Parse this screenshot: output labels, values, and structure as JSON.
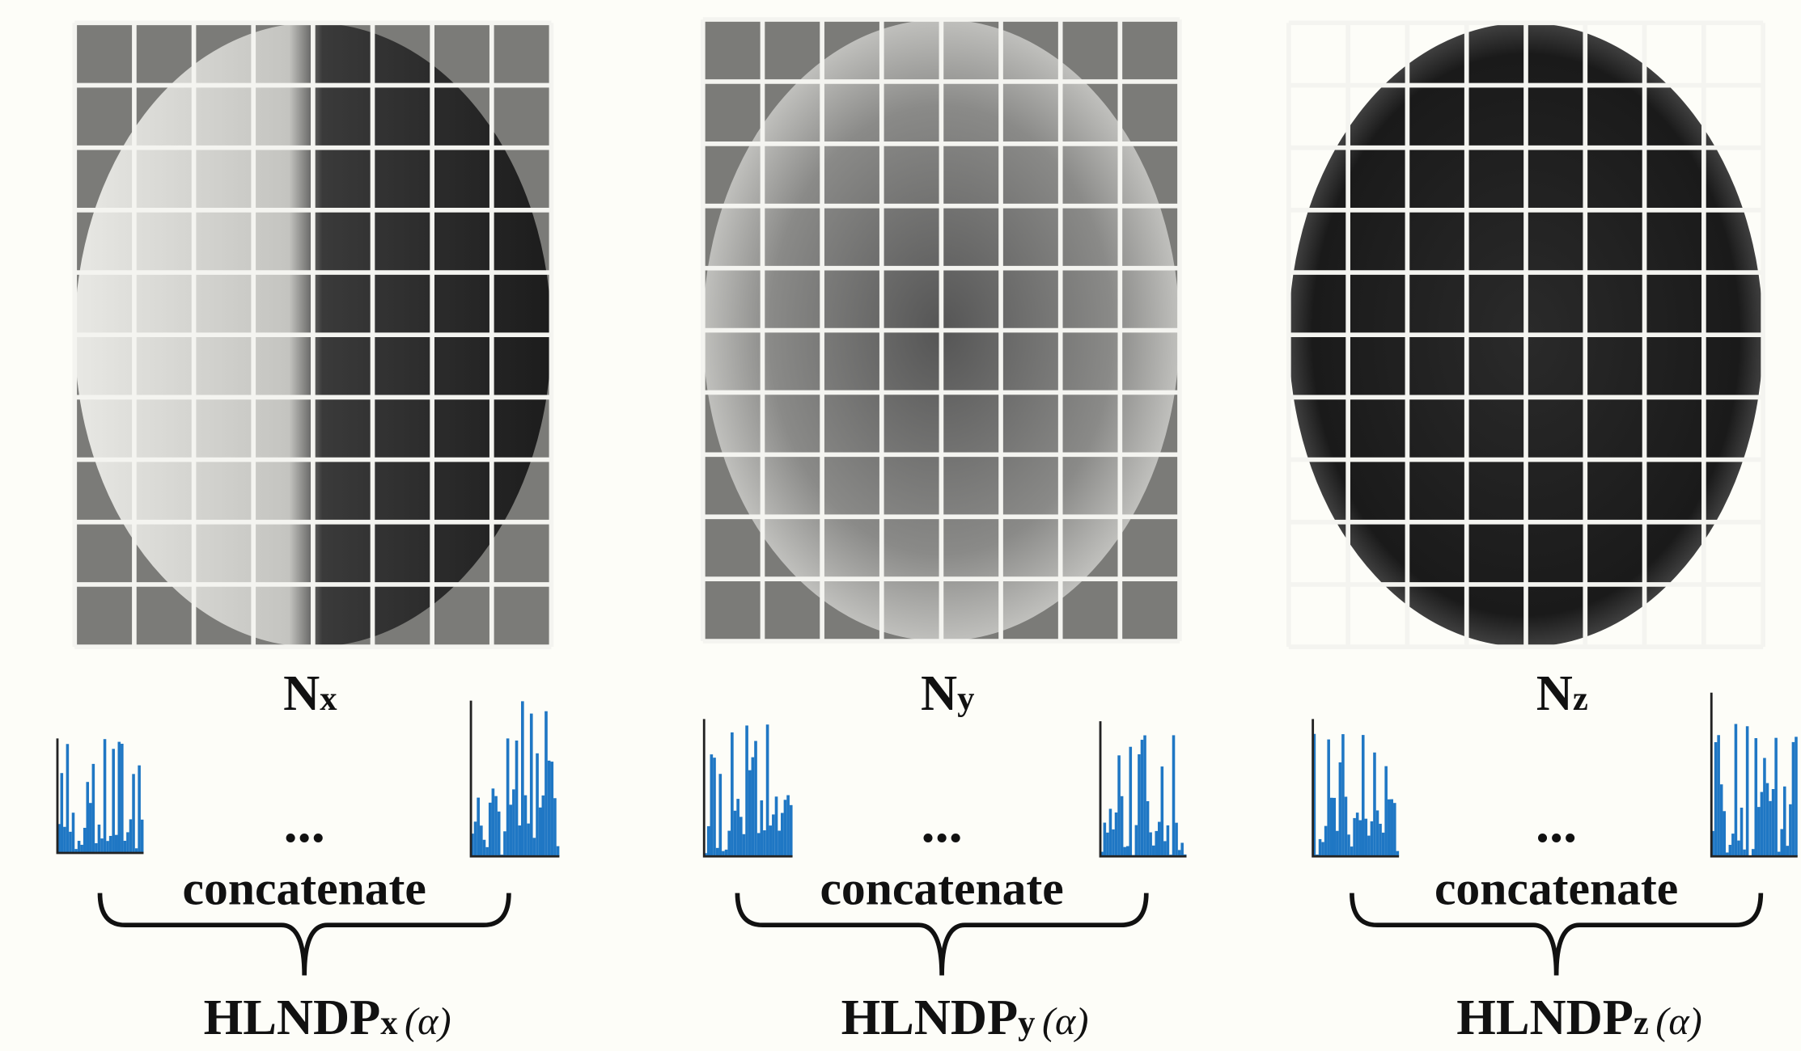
{
  "panels": [
    {
      "label": {
        "base": "N",
        "sub": "x"
      },
      "dots": "...",
      "operation": "concatenate",
      "descriptor": {
        "base": "HLNDP",
        "sub": "x",
        "arg": "(α)"
      }
    },
    {
      "label": {
        "base": "N",
        "sub": "y"
      },
      "dots": "...",
      "operation": "concatenate",
      "descriptor": {
        "base": "HLNDP",
        "sub": "y",
        "arg": "(α)"
      }
    },
    {
      "label": {
        "base": "N",
        "sub": "z"
      },
      "dots": "...",
      "operation": "concatenate",
      "descriptor": {
        "base": "HLNDP",
        "sub": "z",
        "arg": "(α)"
      }
    }
  ]
}
